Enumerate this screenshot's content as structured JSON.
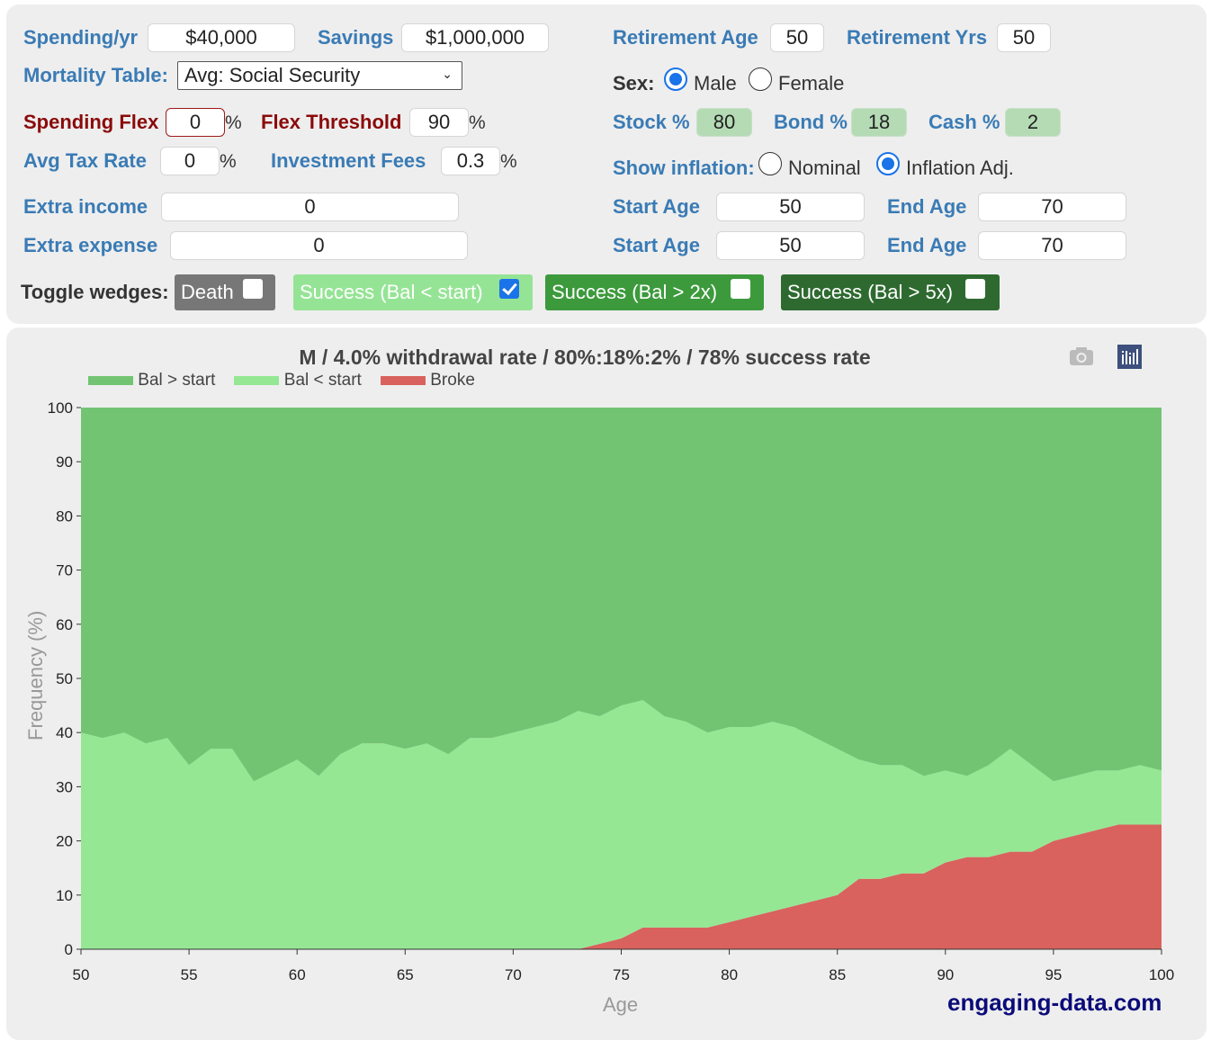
{
  "controls": {
    "spending_label": "Spending/yr",
    "spending_value": "$40,000",
    "savings_label": "Savings",
    "savings_value": "$1,000,000",
    "mortality_label": "Mortality Table:",
    "mortality_value": "Avg: Social Security",
    "flex_label": "Spending Flex",
    "flex_value": "0",
    "pct": "%",
    "threshold_label": "Flex Threshold",
    "threshold_value": "90",
    "tax_label": "Avg Tax Rate",
    "tax_value": "0",
    "fees_label": "Investment Fees",
    "fees_value": "0.3",
    "extra_income_label": "Extra income",
    "extra_income_value": "0",
    "extra_expense_label": "Extra expense",
    "extra_expense_value": "0",
    "ret_age_label": "Retirement Age",
    "ret_age_value": "50",
    "ret_yrs_label": "Retirement Yrs",
    "ret_yrs_value": "50",
    "sex_label": "Sex:",
    "male": "Male",
    "female": "Female",
    "sex_selected": "Male",
    "stock_label": "Stock %",
    "stock_value": "80",
    "bond_label": "Bond %",
    "bond_value": "18",
    "cash_label": "Cash %",
    "cash_value": "2",
    "inflation_label": "Show inflation:",
    "nominal": "Nominal",
    "inflation_adj": "Inflation Adj.",
    "inflation_selected": "Inflation Adj.",
    "start_age_label": "Start Age",
    "end_age_label": "End Age",
    "income_start": "50",
    "income_end": "70",
    "expense_start": "50",
    "expense_end": "70",
    "toggle_label": "Toggle wedges:",
    "wedges": [
      {
        "label": "Death",
        "checked": false,
        "color": "#777777"
      },
      {
        "label": "Success (Bal < start)",
        "checked": true,
        "color": "#95e495"
      },
      {
        "label": "Success (Bal > 2x)",
        "checked": false,
        "color": "#3c9a3c"
      },
      {
        "label": "Success (Bal > 5x)",
        "checked": false,
        "color": "#2e6a30"
      }
    ]
  },
  "chart_data": {
    "type": "area",
    "title": "M / 4.0% withdrawal rate / 80%:18%:2% / 78% success rate",
    "xlabel": "Age",
    "ylabel": "Frequency (%)",
    "xlim": [
      50,
      100
    ],
    "ylim": [
      0,
      100
    ],
    "xticks": [
      "50",
      "55",
      "60",
      "65",
      "70",
      "75",
      "80",
      "85",
      "90",
      "95",
      "100"
    ],
    "yticks": [
      "0",
      "10",
      "20",
      "30",
      "40",
      "50",
      "60",
      "70",
      "80",
      "90",
      "100"
    ],
    "legend_position": "top-left",
    "stacked": true,
    "x_start": 50,
    "series": [
      {
        "name": "Broke",
        "color": "#d9625e",
        "values": [
          0,
          0,
          0,
          0,
          0,
          0,
          0,
          0,
          0,
          0,
          0,
          0,
          0,
          0,
          0,
          0,
          0,
          0,
          0,
          0,
          0,
          0,
          0,
          0,
          1,
          2,
          4,
          4,
          4,
          4,
          5,
          6,
          7,
          8,
          9,
          10,
          13,
          13,
          14,
          14,
          16,
          17,
          17,
          18,
          18,
          20,
          21,
          22,
          23,
          23,
          23
        ]
      },
      {
        "name": "Bal < start",
        "color": "#95e794",
        "values": [
          40,
          39,
          40,
          38,
          39,
          34,
          37,
          37,
          31,
          33,
          35,
          32,
          36,
          38,
          38,
          37,
          38,
          36,
          39,
          39,
          40,
          41,
          42,
          44,
          42,
          43,
          42,
          39,
          38,
          36,
          36,
          35,
          35,
          33,
          30,
          27,
          22,
          21,
          20,
          18,
          17,
          15,
          17,
          19,
          16,
          11,
          11,
          11,
          10,
          11,
          10
        ]
      },
      {
        "name": "Bal > start",
        "color": "#72c473",
        "values": [
          60,
          61,
          60,
          62,
          61,
          66,
          63,
          63,
          69,
          67,
          65,
          68,
          64,
          62,
          62,
          63,
          62,
          64,
          61,
          61,
          60,
          59,
          58,
          56,
          57,
          55,
          54,
          57,
          58,
          60,
          59,
          59,
          58,
          59,
          61,
          63,
          65,
          66,
          66,
          68,
          67,
          68,
          66,
          63,
          66,
          69,
          68,
          67,
          67,
          66,
          67
        ]
      }
    ],
    "legend": [
      "Bal > start",
      "Bal < start",
      "Broke"
    ],
    "watermark": "engaging-data.com"
  },
  "icons": {
    "camera": "camera-icon",
    "chart": "chart-icon"
  }
}
